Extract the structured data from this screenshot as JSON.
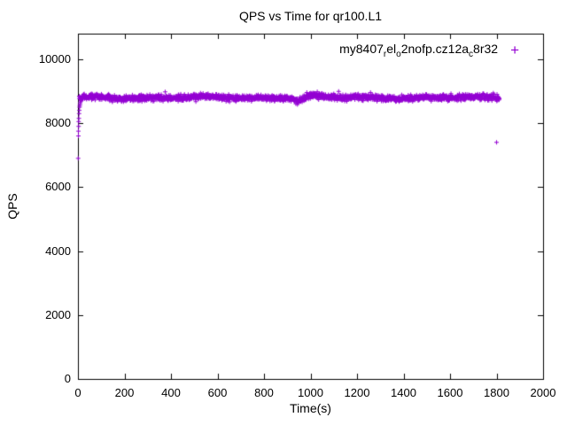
{
  "title": "QPS vs Time for qr100.L1",
  "chart_data": {
    "type": "scatter",
    "title": "QPS vs Time for qr100.L1",
    "xlabel": "Time(s)",
    "ylabel": "QPS",
    "xlim": [
      0,
      2000
    ],
    "ylim": [
      0,
      10800
    ],
    "xticks": [
      0,
      200,
      400,
      600,
      800,
      1000,
      1200,
      1400,
      1600,
      1800,
      2000
    ],
    "yticks": [
      0,
      2000,
      4000,
      6000,
      8000,
      10000
    ],
    "grid": false,
    "background": "#ffffff",
    "axis_color": "#000000",
    "legend_position": "top-right-inside",
    "series": [
      {
        "name": "my8407_rel_o2nofp.cz12a_c8r32",
        "label_segments": [
          {
            "text": "my8407",
            "sub": false
          },
          {
            "text": "r",
            "sub": true
          },
          {
            "text": "el",
            "sub": false
          },
          {
            "text": "o",
            "sub": true
          },
          {
            "text": "2nofp.cz12a",
            "sub": false
          },
          {
            "text": "c",
            "sub": true
          },
          {
            "text": "8r32",
            "sub": false
          }
        ],
        "marker": "+",
        "color": "#9400D3",
        "summary": "Steady plateau near 8800 QPS from t=10s to t=1810s with roughly +/-150 QPS noise; warm-up ramp starting near 6900 QPS at t=1s; one low outlier near (1800, 7400).",
        "warmup_points": [
          [
            1,
            6900
          ],
          [
            2,
            7600
          ],
          [
            2,
            7750
          ],
          [
            3,
            7900
          ],
          [
            3,
            8050
          ],
          [
            4,
            8150
          ],
          [
            5,
            8300
          ],
          [
            6,
            8400
          ],
          [
            7,
            8500
          ],
          [
            8,
            8550
          ],
          [
            9,
            8600
          ],
          [
            10,
            8650
          ],
          [
            12,
            8700
          ],
          [
            14,
            8720
          ],
          [
            16,
            8750
          ],
          [
            20,
            8760
          ]
        ],
        "outliers": [
          [
            1800,
            7400
          ]
        ],
        "band": {
          "t_start": 6,
          "t_end": 1812,
          "step": 1,
          "mean": 8800,
          "noise": 45,
          "extra_scatter": 130,
          "extra_prob": 0.05,
          "seed": 42,
          "wobble": [
            {
              "amp": 22,
              "period": 90
            },
            {
              "amp": 18,
              "period": 37
            }
          ],
          "features": [
            {
              "t": 950,
              "amp": -85,
              "width": 22
            },
            {
              "t": 1015,
              "amp": 45,
              "width": 25
            }
          ]
        }
      }
    ]
  }
}
